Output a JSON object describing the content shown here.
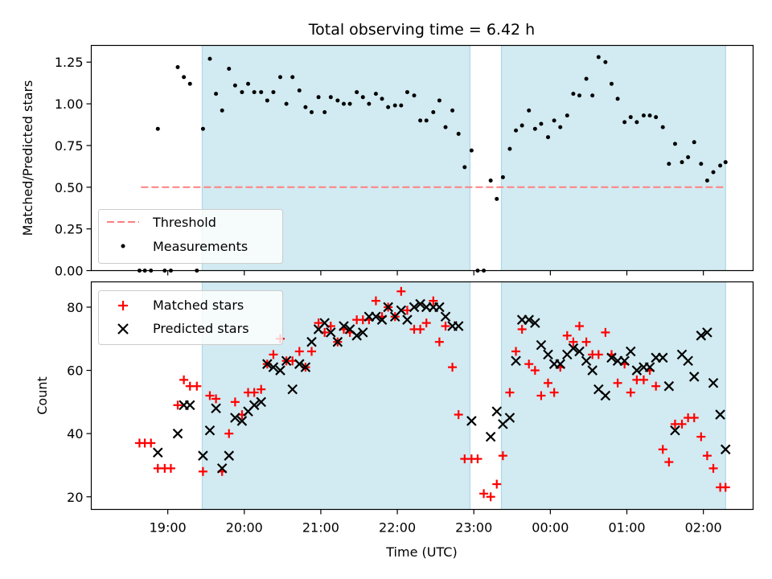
{
  "chart_data": {
    "type": "scatter",
    "title": "Total observing time = 6.42 h",
    "xlabel": "Time (UTC)",
    "x_tick_labels": [
      "19:00",
      "20:00",
      "21:00",
      "22:00",
      "23:00",
      "00:00",
      "01:00",
      "02:00"
    ],
    "x_tick_hours": [
      19,
      20,
      21,
      22,
      23,
      24,
      25,
      26
    ],
    "x_range_hours": [
      18.0,
      26.65
    ],
    "observing_windows_hours": [
      [
        19.45,
        22.95
      ],
      [
        23.36,
        26.29
      ]
    ],
    "window_color": "#add8e6",
    "top_panel": {
      "ylabel": "Matched/Predicted stars",
      "ylim": [
        0,
        1.35
      ],
      "y_ticks": [
        0.0,
        0.25,
        0.5,
        0.75,
        1.0,
        1.25
      ],
      "y_tick_labels": [
        "0.00",
        "0.25",
        "0.50",
        "0.75",
        "1.00",
        "1.25"
      ],
      "threshold": {
        "name": "Threshold",
        "value": 0.5,
        "x_range_hours": [
          18.65,
          26.29
        ],
        "color": "#ff8080"
      },
      "series": [
        {
          "name": "Measurements",
          "color": "#000000",
          "marker": "dot",
          "x": [
            18.63,
            18.7,
            18.78,
            18.87,
            18.96,
            19.04,
            19.13,
            19.21,
            19.29,
            19.38,
            19.46,
            19.55,
            19.63,
            19.71,
            19.8,
            19.88,
            19.97,
            20.05,
            20.13,
            20.22,
            20.3,
            20.38,
            20.47,
            20.55,
            20.63,
            20.72,
            20.8,
            20.88,
            20.97,
            21.05,
            21.13,
            21.22,
            21.3,
            21.38,
            21.47,
            21.55,
            21.63,
            21.72,
            21.8,
            21.88,
            21.97,
            22.05,
            22.13,
            22.22,
            22.3,
            22.38,
            22.47,
            22.55,
            22.63,
            22.72,
            22.8,
            22.88,
            22.97,
            23.05,
            23.13,
            23.22,
            23.3,
            23.38,
            23.47,
            23.55,
            23.63,
            23.72,
            23.8,
            23.88,
            23.97,
            24.05,
            24.13,
            24.22,
            24.3,
            24.38,
            24.47,
            24.55,
            24.63,
            24.72,
            24.8,
            24.88,
            24.97,
            25.05,
            25.13,
            25.22,
            25.3,
            25.38,
            25.47,
            25.55,
            25.63,
            25.72,
            25.8,
            25.88,
            25.97,
            26.05,
            26.13,
            26.22,
            26.29
          ],
          "y": [
            0.0,
            0.0,
            0.0,
            0.85,
            0.0,
            0.0,
            1.22,
            1.16,
            1.12,
            0.0,
            0.85,
            1.27,
            1.06,
            0.96,
            1.21,
            1.11,
            1.07,
            1.12,
            1.07,
            1.07,
            1.02,
            1.07,
            1.16,
            1.0,
            1.16,
            1.08,
            0.98,
            0.95,
            1.04,
            0.95,
            1.04,
            1.02,
            1.0,
            1.0,
            1.07,
            1.04,
            1.0,
            1.06,
            1.03,
            0.98,
            0.99,
            0.99,
            1.07,
            1.05,
            0.9,
            0.9,
            0.95,
            1.02,
            0.86,
            0.96,
            0.82,
            0.62,
            0.72,
            0.0,
            0.0,
            0.54,
            0.43,
            0.56,
            0.73,
            0.84,
            0.87,
            0.96,
            0.85,
            0.88,
            0.8,
            0.9,
            0.86,
            0.93,
            1.06,
            1.05,
            1.15,
            1.05,
            1.28,
            1.25,
            1.12,
            1.03,
            0.89,
            0.92,
            0.89,
            0.93,
            0.93,
            0.92,
            0.86,
            0.64,
            0.76,
            0.65,
            0.68,
            0.77,
            0.64,
            0.54,
            0.59,
            0.63,
            0.65
          ]
        }
      ]
    },
    "bottom_panel": {
      "ylabel": "Count",
      "ylim": [
        16,
        88
      ],
      "y_ticks": [
        20,
        40,
        60,
        80
      ],
      "y_tick_labels": [
        "20",
        "40",
        "60",
        "80"
      ],
      "series": [
        {
          "name": "Matched stars",
          "color": "#ff0000",
          "marker": "plus",
          "x": [
            18.63,
            18.7,
            18.78,
            18.87,
            18.96,
            19.04,
            19.13,
            19.21,
            19.29,
            19.38,
            19.46,
            19.55,
            19.63,
            19.71,
            19.8,
            19.88,
            19.97,
            20.05,
            20.13,
            20.22,
            20.3,
            20.38,
            20.47,
            20.55,
            20.63,
            20.72,
            20.8,
            20.88,
            20.97,
            21.05,
            21.13,
            21.22,
            21.3,
            21.38,
            21.47,
            21.55,
            21.63,
            21.72,
            21.8,
            21.88,
            21.97,
            22.05,
            22.13,
            22.22,
            22.3,
            22.38,
            22.47,
            22.55,
            22.63,
            22.72,
            22.8,
            22.88,
            22.97,
            23.05,
            23.13,
            23.22,
            23.3,
            23.38,
            23.47,
            23.55,
            23.63,
            23.72,
            23.8,
            23.88,
            23.97,
            24.05,
            24.13,
            24.22,
            24.3,
            24.38,
            24.47,
            24.55,
            24.63,
            24.72,
            24.8,
            24.88,
            24.97,
            25.05,
            25.13,
            25.22,
            25.3,
            25.38,
            25.47,
            25.55,
            25.63,
            25.72,
            25.8,
            25.88,
            25.97,
            26.05,
            26.13,
            26.22,
            26.29
          ],
          "y": [
            37,
            37,
            37,
            29,
            29,
            29,
            49,
            57,
            55,
            55,
            28,
            52,
            51,
            28,
            40,
            50,
            46,
            53,
            53,
            54,
            62,
            65,
            70,
            63,
            63,
            66,
            61,
            66,
            75,
            72,
            74,
            69,
            73,
            72,
            76,
            76,
            76,
            82,
            77,
            80,
            77,
            85,
            79,
            73,
            73,
            75,
            82,
            69,
            74,
            61,
            46,
            32,
            32,
            32,
            21,
            20,
            24,
            33,
            53,
            66,
            73,
            62,
            60,
            52,
            56,
            53,
            61,
            71,
            69,
            74,
            69,
            65,
            65,
            72,
            65,
            56,
            62,
            53,
            57,
            57,
            60,
            55,
            35,
            31,
            43,
            43,
            45,
            45,
            39,
            33,
            29,
            23,
            23
          ]
        },
        {
          "name": "Predicted stars",
          "color": "#000000",
          "marker": "x",
          "x": [
            18.87,
            19.13,
            19.21,
            19.29,
            19.46,
            19.55,
            19.63,
            19.71,
            19.8,
            19.88,
            19.97,
            20.05,
            20.13,
            20.22,
            20.3,
            20.38,
            20.47,
            20.55,
            20.63,
            20.72,
            20.8,
            20.88,
            20.97,
            21.05,
            21.13,
            21.22,
            21.3,
            21.38,
            21.47,
            21.55,
            21.63,
            21.72,
            21.8,
            21.88,
            21.97,
            22.05,
            22.13,
            22.22,
            22.3,
            22.38,
            22.47,
            22.55,
            22.63,
            22.72,
            22.8,
            22.97,
            23.22,
            23.3,
            23.38,
            23.47,
            23.55,
            23.63,
            23.72,
            23.8,
            23.88,
            23.97,
            24.05,
            24.13,
            24.22,
            24.3,
            24.38,
            24.47,
            24.55,
            24.63,
            24.72,
            24.8,
            24.88,
            24.97,
            25.05,
            25.13,
            25.22,
            25.3,
            25.38,
            25.47,
            25.55,
            25.63,
            25.72,
            25.8,
            25.88,
            25.97,
            26.05,
            26.13,
            26.22,
            26.29
          ],
          "y": [
            34,
            40,
            49,
            49,
            33,
            41,
            48,
            29,
            33,
            45,
            44,
            47,
            49,
            50,
            62,
            61,
            60,
            63,
            54,
            62,
            61,
            69,
            73,
            75,
            72,
            69,
            74,
            73,
            71,
            72,
            77,
            77,
            76,
            80,
            77,
            79,
            76,
            80,
            81,
            80,
            80,
            80,
            77,
            74,
            74,
            44,
            39,
            47,
            43,
            45,
            63,
            76,
            76,
            75,
            68,
            65,
            62,
            62,
            65,
            67,
            66,
            63,
            60,
            54,
            52,
            64,
            63,
            63,
            66,
            60,
            61,
            61,
            64,
            64,
            55,
            41,
            65,
            63,
            58,
            71,
            72,
            56,
            46,
            35
          ]
        }
      ]
    }
  }
}
